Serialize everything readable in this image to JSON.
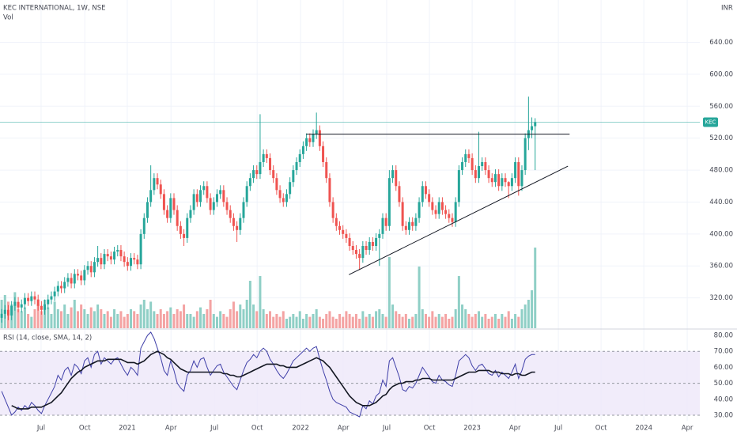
{
  "chart_data": {
    "type": "candlestick",
    "title": "KEC INTERNATIONAL, 1W, NSE",
    "currency": "INR",
    "symbol": "KEC",
    "up_color": "#26a69a",
    "down_color": "#ef5350",
    "xlim": [
      -0.5,
      210.7
    ],
    "xticks": [
      {
        "value": 11.9,
        "label": "Jul"
      },
      {
        "value": 25.1,
        "label": "Oct"
      },
      {
        "value": 37.9,
        "label": "2021"
      },
      {
        "value": 51.1,
        "label": "Apr"
      },
      {
        "value": 64.2,
        "label": "Jul"
      },
      {
        "value": 77.1,
        "label": "Oct"
      },
      {
        "value": 90.2,
        "label": "2022"
      },
      {
        "value": 103.1,
        "label": "Apr"
      },
      {
        "value": 116.2,
        "label": "Jul"
      },
      {
        "value": 129.1,
        "label": "Oct"
      },
      {
        "value": 142.0,
        "label": "2023"
      },
      {
        "value": 154.9,
        "label": "Apr"
      },
      {
        "value": 168.0,
        "label": "Jul"
      },
      {
        "value": 180.9,
        "label": "Oct"
      },
      {
        "value": 193.8,
        "label": "2024"
      },
      {
        "value": 206.9,
        "label": "Apr"
      }
    ],
    "ylim": [
      282,
      693
    ],
    "yticks": [
      {
        "value": 320,
        "label": "320.00"
      },
      {
        "value": 360,
        "label": "360.00"
      },
      {
        "value": 400,
        "label": "400.00"
      },
      {
        "value": 440,
        "label": "440.00"
      },
      {
        "value": 480,
        "label": "480.00"
      },
      {
        "value": 520,
        "label": "520.00"
      },
      {
        "value": 560,
        "label": "560.00"
      },
      {
        "value": 600,
        "label": "600.00"
      },
      {
        "value": 640,
        "label": "640.00"
      }
    ],
    "open": [
      295,
      300,
      305,
      298,
      310,
      315,
      308,
      312,
      320,
      316,
      322,
      318,
      310,
      305,
      312,
      318,
      322,
      328,
      335,
      332,
      340,
      345,
      338,
      350,
      348,
      342,
      355,
      360,
      352,
      365,
      370,
      362,
      375,
      372,
      368,
      378,
      380,
      372,
      365,
      360,
      370,
      368,
      362,
      400,
      420,
      440,
      455,
      470,
      462,
      450,
      430,
      420,
      445,
      430,
      410,
      400,
      395,
      420,
      430,
      450,
      440,
      455,
      460,
      445,
      430,
      440,
      450,
      455,
      440,
      430,
      420,
      410,
      405,
      420,
      440,
      460,
      470,
      480,
      475,
      490,
      500,
      495,
      480,
      470,
      455,
      445,
      440,
      450,
      465,
      480,
      490,
      500,
      510,
      520,
      515,
      525,
      530,
      510,
      490,
      470,
      440,
      420,
      410,
      405,
      400,
      395,
      385,
      380,
      375,
      370,
      385,
      380,
      390,
      385,
      395,
      400,
      420,
      410,
      470,
      480,
      460,
      440,
      410,
      405,
      415,
      410,
      420,
      440,
      460,
      450,
      440,
      430,
      425,
      440,
      430,
      425,
      420,
      415,
      440,
      480,
      490,
      500,
      495,
      480,
      470,
      485,
      490,
      480,
      470,
      465,
      475,
      460,
      470,
      465,
      460,
      470,
      490,
      460,
      480,
      520,
      530,
      535
    ],
    "high": [
      306,
      311,
      311,
      316,
      321,
      321,
      318,
      326,
      326,
      328,
      328,
      324,
      316,
      318,
      324,
      328,
      334,
      341,
      341,
      346,
      351,
      351,
      356,
      356,
      354,
      361,
      366,
      366,
      371,
      385,
      376,
      381,
      381,
      378,
      384,
      386,
      386,
      378,
      371,
      376,
      376,
      374,
      406,
      426,
      446,
      486,
      476,
      476,
      468,
      456,
      436,
      451,
      451,
      436,
      416,
      406,
      426,
      436,
      456,
      456,
      461,
      466,
      466,
      451,
      446,
      456,
      461,
      461,
      446,
      436,
      426,
      416,
      426,
      446,
      466,
      476,
      486,
      486,
      550,
      506,
      506,
      501,
      486,
      476,
      461,
      451,
      456,
      471,
      486,
      496,
      506,
      516,
      526,
      526,
      531,
      552,
      536,
      516,
      496,
      476,
      446,
      426,
      416,
      411,
      406,
      401,
      391,
      386,
      381,
      391,
      391,
      396,
      396,
      401,
      406,
      426,
      426,
      480,
      486,
      486,
      466,
      446,
      416,
      421,
      421,
      426,
      446,
      466,
      466,
      456,
      446,
      436,
      446,
      446,
      436,
      431,
      426,
      446,
      486,
      496,
      506,
      506,
      501,
      486,
      528,
      496,
      496,
      486,
      476,
      481,
      481,
      476,
      476,
      466,
      476,
      496,
      496,
      486,
      526,
      572,
      546,
      545
    ],
    "low": [
      289,
      294,
      292,
      292,
      304,
      302,
      302,
      306,
      310,
      310,
      312,
      304,
      299,
      299,
      306,
      312,
      316,
      322,
      326,
      326,
      334,
      332,
      332,
      342,
      336,
      336,
      349,
      346,
      346,
      359,
      356,
      356,
      366,
      362,
      362,
      372,
      366,
      359,
      354,
      354,
      362,
      356,
      356,
      394,
      414,
      434,
      449,
      456,
      444,
      424,
      414,
      414,
      424,
      404,
      394,
      385,
      389,
      414,
      424,
      434,
      434,
      449,
      439,
      424,
      424,
      434,
      444,
      434,
      424,
      414,
      404,
      390,
      399,
      414,
      434,
      454,
      464,
      469,
      469,
      484,
      489,
      474,
      464,
      449,
      439,
      434,
      434,
      444,
      459,
      474,
      484,
      494,
      504,
      509,
      509,
      519,
      504,
      484,
      464,
      434,
      414,
      404,
      399,
      394,
      389,
      379,
      374,
      369,
      355,
      364,
      374,
      374,
      379,
      379,
      360,
      394,
      404,
      404,
      464,
      454,
      434,
      404,
      399,
      399,
      404,
      404,
      414,
      434,
      444,
      434,
      424,
      419,
      419,
      424,
      419,
      414,
      409,
      409,
      434,
      474,
      484,
      489,
      474,
      464,
      464,
      479,
      474,
      464,
      459,
      459,
      454,
      454,
      459,
      445,
      454,
      464,
      448,
      454,
      474,
      505,
      520,
      480
    ],
    "close": [
      300,
      305,
      298,
      310,
      315,
      308,
      312,
      320,
      316,
      322,
      318,
      310,
      305,
      312,
      318,
      322,
      328,
      335,
      332,
      340,
      345,
      338,
      350,
      348,
      342,
      355,
      360,
      352,
      365,
      370,
      362,
      375,
      372,
      368,
      378,
      380,
      372,
      365,
      360,
      370,
      368,
      362,
      400,
      420,
      440,
      455,
      470,
      462,
      450,
      430,
      420,
      445,
      430,
      410,
      400,
      395,
      420,
      430,
      450,
      440,
      455,
      460,
      445,
      430,
      440,
      450,
      455,
      440,
      430,
      420,
      410,
      405,
      420,
      440,
      460,
      470,
      480,
      475,
      490,
      500,
      495,
      480,
      470,
      455,
      445,
      440,
      450,
      465,
      480,
      490,
      500,
      510,
      520,
      515,
      525,
      530,
      510,
      490,
      470,
      440,
      420,
      410,
      405,
      400,
      395,
      385,
      380,
      375,
      370,
      385,
      380,
      390,
      385,
      395,
      400,
      420,
      410,
      470,
      480,
      460,
      440,
      410,
      405,
      415,
      410,
      420,
      440,
      460,
      450,
      440,
      430,
      425,
      440,
      430,
      425,
      420,
      415,
      440,
      480,
      490,
      500,
      495,
      480,
      470,
      485,
      490,
      480,
      470,
      465,
      475,
      460,
      470,
      465,
      460,
      470,
      490,
      460,
      480,
      520,
      530,
      535,
      540
    ],
    "drawings": [
      {
        "from": [
          91.9,
          525
        ],
        "to": [
          171.4,
          525
        ],
        "color": "#131722"
      },
      {
        "from": [
          104.8,
          349
        ],
        "to": [
          170.9,
          485
        ],
        "color": "#131722"
      }
    ],
    "volume": {
      "name": "Vol",
      "lim": [
        0,
        346
      ],
      "up_color": "#8fcfc6",
      "down_color": "#f4a3a3",
      "values": [
        30,
        35,
        28,
        25,
        38,
        20,
        18,
        22,
        15,
        12,
        20,
        25,
        18,
        30,
        22,
        15,
        28,
        20,
        18,
        25,
        15,
        22,
        30,
        18,
        25,
        20,
        15,
        22,
        18,
        25,
        20,
        15,
        18,
        12,
        20,
        15,
        18,
        12,
        15,
        20,
        18,
        15,
        25,
        30,
        20,
        28,
        18,
        15,
        20,
        15,
        18,
        22,
        15,
        20,
        18,
        25,
        15,
        15,
        12,
        18,
        22,
        15,
        20,
        30,
        15,
        12,
        18,
        15,
        12,
        20,
        28,
        18,
        25,
        20,
        30,
        50,
        25,
        18,
        55,
        20,
        15,
        18,
        12,
        15,
        12,
        18,
        10,
        12,
        15,
        12,
        18,
        10,
        15,
        12,
        15,
        20,
        12,
        10,
        15,
        18,
        12,
        10,
        15,
        12,
        18,
        15,
        12,
        15,
        10,
        18,
        12,
        15,
        12,
        18,
        20,
        15,
        12,
        75,
        25,
        18,
        15,
        12,
        15,
        10,
        12,
        15,
        65,
        20,
        15,
        12,
        18,
        12,
        15,
        12,
        15,
        10,
        12,
        20,
        55,
        25,
        20,
        15,
        12,
        15,
        18,
        12,
        15,
        10,
        12,
        15,
        10,
        15,
        12,
        18,
        10,
        15,
        12,
        20,
        25,
        30,
        40,
        85
      ]
    },
    "rsi": {
      "name": "RSI (14, close, SMA, 14, 2)",
      "color": "#3f3fa8",
      "sma_color": "#131722",
      "band_color": "#ede7f9",
      "ylim": [
        26.5,
        83
      ],
      "yticks": [
        {
          "value": 30,
          "label": "30.00"
        },
        {
          "value": 40,
          "label": "40.00"
        },
        {
          "value": 50,
          "label": "50.00"
        },
        {
          "value": 60,
          "label": "60.00"
        },
        {
          "value": 70,
          "label": "70.00"
        },
        {
          "value": 80,
          "label": "80.00"
        }
      ],
      "levels": [
        70,
        50,
        30
      ],
      "values": [
        45,
        40,
        35,
        30,
        32,
        35,
        33,
        36,
        34,
        38,
        36,
        33,
        31,
        36,
        40,
        44,
        48,
        55,
        52,
        58,
        60,
        55,
        62,
        60,
        56,
        64,
        66,
        60,
        68,
        70,
        62,
        66,
        64,
        62,
        65,
        66,
        62,
        58,
        55,
        60,
        58,
        55,
        72,
        76,
        80,
        82,
        78,
        72,
        66,
        58,
        55,
        64,
        58,
        50,
        47,
        45,
        55,
        58,
        64,
        60,
        65,
        66,
        60,
        55,
        58,
        61,
        62,
        57,
        54,
        51,
        48,
        46,
        52,
        58,
        63,
        65,
        68,
        66,
        70,
        72,
        70,
        65,
        62,
        58,
        55,
        53,
        56,
        60,
        64,
        66,
        68,
        70,
        72,
        70,
        72,
        73,
        65,
        58,
        52,
        45,
        40,
        38,
        37,
        36,
        35,
        32,
        31,
        30,
        29,
        36,
        34,
        39,
        37,
        42,
        44,
        52,
        48,
        64,
        66,
        60,
        54,
        46,
        45,
        48,
        47,
        50,
        55,
        60,
        57,
        54,
        51,
        50,
        55,
        52,
        51,
        49,
        48,
        55,
        64,
        66,
        68,
        66,
        61,
        58,
        61,
        62,
        59,
        56,
        55,
        58,
        54,
        57,
        55,
        53,
        57,
        62,
        53,
        58,
        65,
        67,
        68,
        68
      ],
      "sma": [
        null,
        null,
        null,
        36,
        35,
        34,
        34,
        34,
        34,
        35,
        35,
        35,
        35,
        36,
        37,
        38,
        40,
        42,
        44,
        47,
        50,
        53,
        55,
        57,
        58,
        60,
        61,
        62,
        63,
        64,
        64,
        64,
        65,
        65,
        65,
        65,
        65,
        64,
        63,
        63,
        63,
        62,
        63,
        64,
        66,
        68,
        69,
        70,
        69,
        68,
        66,
        65,
        63,
        61,
        59,
        58,
        57,
        57,
        57,
        57,
        57,
        57,
        57,
        57,
        57,
        57,
        57,
        56,
        56,
        55,
        55,
        54,
        54,
        55,
        56,
        57,
        58,
        59,
        60,
        61,
        62,
        62,
        62,
        62,
        61,
        61,
        60,
        60,
        60,
        60,
        61,
        62,
        63,
        64,
        65,
        66,
        65,
        64,
        62,
        60,
        57,
        54,
        51,
        48,
        45,
        42,
        40,
        38,
        37,
        36,
        36,
        36,
        37,
        38,
        40,
        42,
        43,
        46,
        48,
        49,
        50,
        50,
        51,
        51,
        51,
        52,
        52,
        53,
        53,
        53,
        52,
        52,
        52,
        52,
        52,
        52,
        52,
        53,
        54,
        55,
        56,
        57,
        57,
        57,
        58,
        58,
        58,
        58,
        57,
        57,
        57,
        56,
        56,
        56,
        55,
        56,
        56,
        55,
        55,
        56,
        57,
        57
      ]
    }
  }
}
